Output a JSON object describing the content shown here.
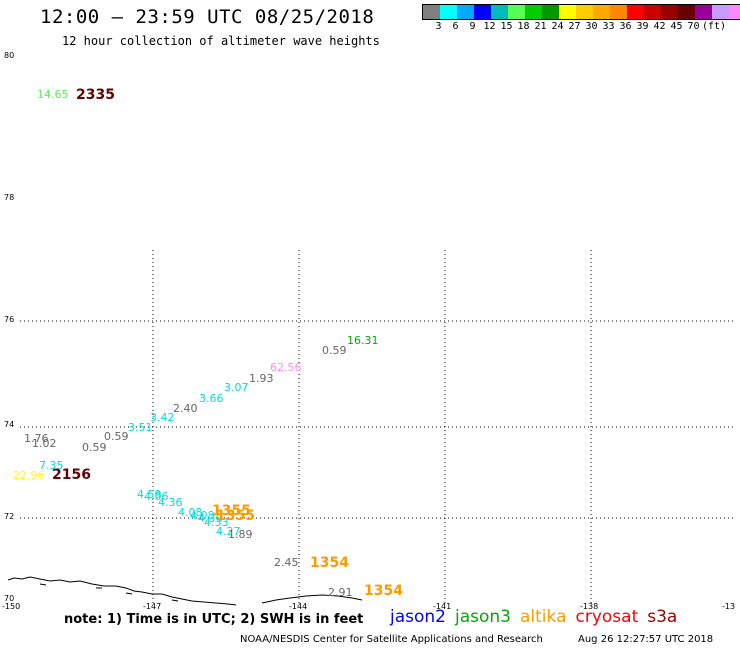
{
  "title": "12:00 – 23:59 UTC 08/25/2018",
  "subtitle": "12 hour collection of altimeter wave heights",
  "legend": {
    "colors": [
      "#808080",
      "#00ffff",
      "#00aaff",
      "#0000ff",
      "#00bbbb",
      "#55ff55",
      "#00cc00",
      "#009900",
      "#ffff00",
      "#ffcc00",
      "#ffaa00",
      "#ff8800",
      "#ff0000",
      "#cc0000",
      "#990000",
      "#660000",
      "#990099",
      "#cc99ff",
      "#ff88ff",
      "#000000"
    ],
    "labels": [
      "3",
      "6",
      "9",
      "12",
      "15",
      "18",
      "21",
      "24",
      "27",
      "30",
      "33",
      "36",
      "39",
      "42",
      "45",
      "70"
    ],
    "unit": "(ft)"
  },
  "axes": {
    "y_labels": [
      "80",
      "78",
      "76",
      "74",
      "72",
      "70"
    ],
    "x_labels": [
      "-150",
      "-147",
      "-144",
      "-141",
      "-138",
      "-13"
    ]
  },
  "points": [
    {
      "text": "14.65",
      "color": "#55ee55"
    },
    {
      "text": "2335",
      "color": "#660000"
    },
    {
      "text": "16.31",
      "color": "#00aa00"
    },
    {
      "text": "0.59",
      "color": "#666666"
    },
    {
      "text": "62.56",
      "color": "#ff88ff"
    },
    {
      "text": "1.93",
      "color": "#666666"
    },
    {
      "text": "3.07",
      "color": "#00dddd"
    },
    {
      "text": "3.66",
      "color": "#00dddd"
    },
    {
      "text": "2.40",
      "color": "#666666"
    },
    {
      "text": "3.42",
      "color": "#00dddd"
    },
    {
      "text": "3.51",
      "color": "#00dddd"
    },
    {
      "text": "0.59",
      "color": "#666666"
    },
    {
      "text": "0.59",
      "color": "#666666"
    },
    {
      "text": "1.02",
      "color": "#666666"
    },
    {
      "text": "1.76",
      "color": "#666666"
    },
    {
      "text": "7.35",
      "color": "#00dddd"
    },
    {
      "text": "22.96",
      "color": "#ffff00"
    },
    {
      "text": "2156",
      "color": "#660000"
    },
    {
      "text": "4.59",
      "color": "#00dddd"
    },
    {
      "text": "4.06",
      "color": "#00dddd"
    },
    {
      "text": "4.36",
      "color": "#00dddd"
    },
    {
      "text": "4.08",
      "color": "#00dddd"
    },
    {
      "text": "4.08",
      "color": "#00dddd"
    },
    {
      "text": "4.36",
      "color": "#00dddd"
    },
    {
      "text": "4.33",
      "color": "#00dddd"
    },
    {
      "text": "1355",
      "color": "#ff9900"
    },
    {
      "text": "1355",
      "color": "#ff9900"
    },
    {
      "text": "4.27",
      "color": "#00dddd"
    },
    {
      "text": "1.89",
      "color": "#666666"
    },
    {
      "text": "2.45",
      "color": "#666666"
    },
    {
      "text": "1354",
      "color": "#ff9900"
    },
    {
      "text": "2.91",
      "color": "#666666"
    },
    {
      "text": "1354",
      "color": "#ff9900"
    }
  ],
  "note": "note: 1) Time is in UTC; 2) SWH is in feet",
  "satellites": [
    {
      "name": "jason2",
      "color": "#0000ff"
    },
    {
      "name": "jason3",
      "color": "#00aa00"
    },
    {
      "name": "altika",
      "color": "#ff9900"
    },
    {
      "name": "cryosat",
      "color": "#ff0000"
    },
    {
      "name": "s3a",
      "color": "#990000"
    }
  ],
  "footer": {
    "center": "NOAA/NESDIS Center for Satellite Applications and Research",
    "time": "Aug 26 12:27:57 UTC 2018"
  }
}
